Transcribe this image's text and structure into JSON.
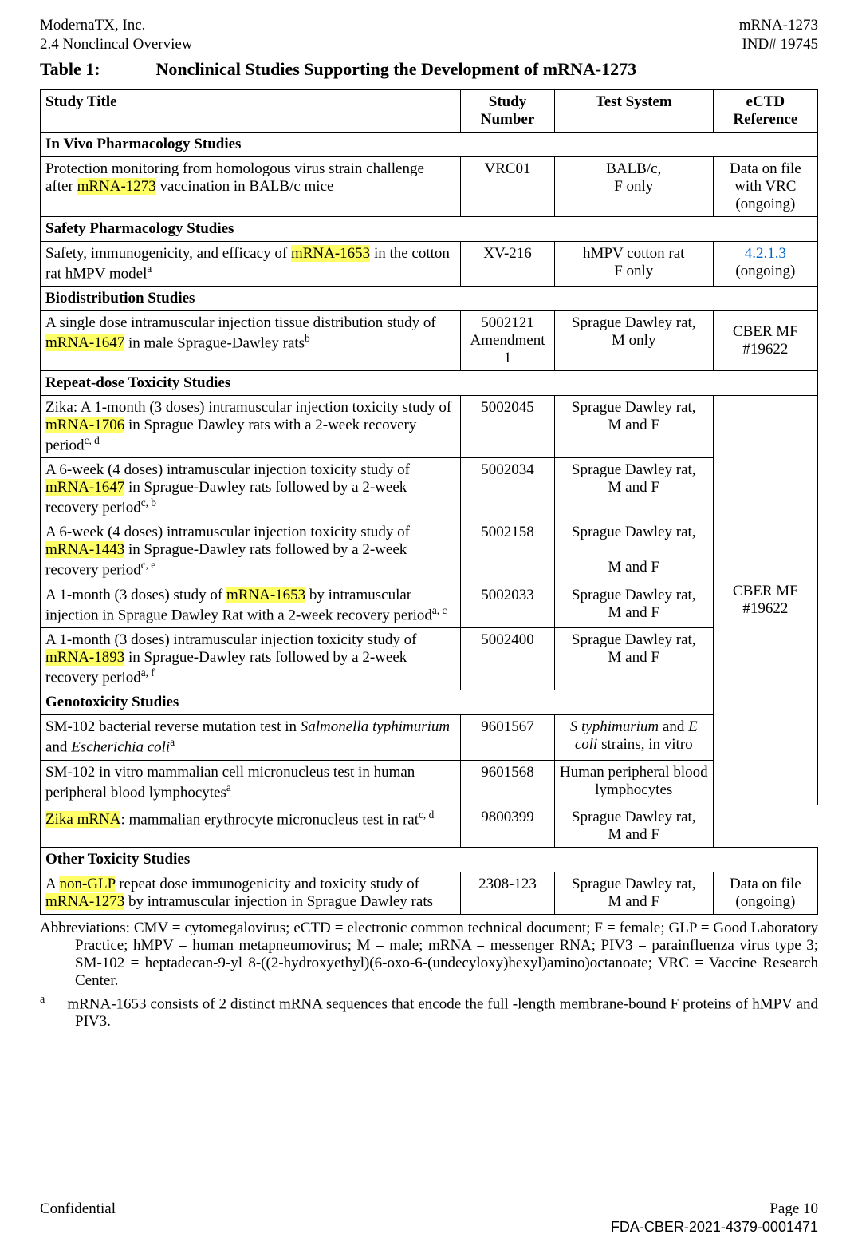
{
  "header": {
    "left_line1": "ModernaTX, Inc.",
    "left_line2": "2.4 Nonclincal Overview",
    "right_line1": "mRNA-1273",
    "right_line2": "IND# 19745"
  },
  "table_title_label": "Table 1:",
  "table_title_text": "Nonclinical Studies Supporting the Development of mRNA-1273",
  "columns": {
    "c1": "Study Title",
    "c2": "Study Number",
    "c3": "Test System",
    "c4": "eCTD Reference"
  },
  "sections": {
    "s1": "In Vivo Pharmacology Studies",
    "s2": "Safety Pharmacology Studies",
    "s3": "Biodistribution Studies",
    "s4": "Repeat-dose Toxicity Studies",
    "s5": "Genotoxicity Studies",
    "s6": "Other Toxicity Studies"
  },
  "rows": {
    "r1": {
      "title_a": "Protection monitoring from homologous virus strain challenge after ",
      "title_hl": "mRNA-1273",
      "title_b": " vaccination in BALB/c mice",
      "num": "VRC01",
      "sys_a": "BALB/c,",
      "sys_b": "F only",
      "ref_a": "Data on file with VRC",
      "ref_b": "(ongoing)"
    },
    "r2": {
      "title_a": "Safety, immunogenicity, and efficacy of ",
      "title_hl": "mRNA-1653",
      "title_b": " in the cotton rat hMPV model",
      "title_sup": "a",
      "num": "XV-216",
      "sys_a": "hMPV cotton rat",
      "sys_b": "F only",
      "ref_link": "4.2.1.3",
      "ref_b": "(ongoing)"
    },
    "r3": {
      "title_a": "A single dose intramuscular injection tissue distribution study of ",
      "title_hl": "mRNA-1647",
      "title_b": " in male Sprague-Dawley rats",
      "title_sup": "b",
      "num_a": "5002121",
      "num_b": "Amendment 1",
      "sys_a": "Sprague Dawley rat,",
      "sys_b": "M only",
      "ref": "CBER MF #19622"
    },
    "r4": {
      "title_a": "Zika: A 1-month (3 doses) intramuscular injection toxicity study of ",
      "title_hl": "mRNA-1706",
      "title_b": " in Sprague Dawley rats with a 2-week recovery period",
      "title_sup": "c, d",
      "num": "5002045",
      "sys_a": "Sprague Dawley rat,",
      "sys_b": "M and F"
    },
    "r5": {
      "title_a": "A 6-week (4 doses) intramuscular injection toxicity study of ",
      "title_hl": "mRNA-1647",
      "title_b": " in Sprague-Dawley rats followed by a 2-week recovery period",
      "title_sup": "c, b",
      "num": "5002034",
      "sys_a": "Sprague Dawley rat,",
      "sys_b": "M and F"
    },
    "r6": {
      "title_a": "A 6-week (4 doses) intramuscular injection toxicity study of ",
      "title_hl": "mRNA-1443",
      "title_b": " in Sprague-Dawley rats followed by a 2-week recovery period",
      "title_sup": "c, e",
      "num": "5002158",
      "sys_a": "Sprague Dawley rat,",
      "sys_b": "M and F"
    },
    "r7": {
      "title_a": "A 1-month (3 doses) study of ",
      "title_hl": "mRNA-1653",
      "title_b": " by intramuscular injection in Sprague Dawley Rat with a 2-week recovery period",
      "title_sup": "a, c",
      "num": "5002033",
      "sys_a": "Sprague Dawley rat,",
      "sys_b": "M and F",
      "ref": "CBER MF #19622"
    },
    "r8": {
      "title_a": "A 1-month (3 doses) intramuscular injection toxicity study of ",
      "title_hl": "mRNA-1893",
      "title_b": " in Sprague-Dawley rats followed by a 2-week recovery period",
      "title_sup": "a, f",
      "num": "5002400",
      "sys_a": "Sprague Dawley rat,",
      "sys_b": "M and F"
    },
    "r9": {
      "title_a": "SM-102 bacterial reverse mutation test in ",
      "title_i1": "Salmonella typhimurium",
      "title_mid": " and ",
      "title_i2": "Escherichia coli",
      "title_sup": "a",
      "num": "9601567",
      "sys_i1": "S typhimurium",
      "sys_mid": " and ",
      "sys_i2": "E coli",
      "sys_tail": " strains, in vitro"
    },
    "r10": {
      "title_a": "SM-102 in vitro mammalian cell micronucleus test in human peripheral blood lymphocytes",
      "title_sup": "a",
      "num": "9601568",
      "sys_a": "Human peripheral blood lymphocytes"
    },
    "r11": {
      "title_hl": "Zika mRNA",
      "title_b": ": mammalian erythrocyte micronucleus test in rat",
      "title_sup": "c, d",
      "num": "9800399",
      "sys_a": "Sprague Dawley rat,",
      "sys_b": "M and F"
    },
    "r12": {
      "title_a": "A ",
      "title_hl": "non-GLP",
      "title_b": " repeat dose immunogenicity and toxicity study of ",
      "title_hl2": "mRNA-1273",
      "title_c": " by intramuscular injection in Sprague Dawley rats",
      "num": "2308-123",
      "sys_a": "Sprague Dawley rat,",
      "sys_b": "M and F",
      "ref_a": "Data on file",
      "ref_b": "(ongoing)"
    }
  },
  "abbrev": "Abbreviations: CMV = cytomegalovirus; eCTD = electronic common technical document; F = female; GLP = Good Laboratory Practice; hMPV = human metapneumovirus; M = male; mRNA = messenger RNA; PIV3 = parainfluenza virus type 3; SM-102 = heptadecan-9-yl 8-((2-hydroxyethyl)(6-oxo-6-(undecyloxy)hexyl)amino)octanoate; VRC = Vaccine Research Center.",
  "footnote_a_mark": "a",
  "footnote_a": "mRNA-1653 consists of 2 distinct mRNA sequences that encode the full -length membrane-bound F proteins of hMPV and PIV3.",
  "footer": {
    "left": "Confidential",
    "right": "Page 10",
    "fda": "FDA-CBER-2021-4379-0001471"
  }
}
